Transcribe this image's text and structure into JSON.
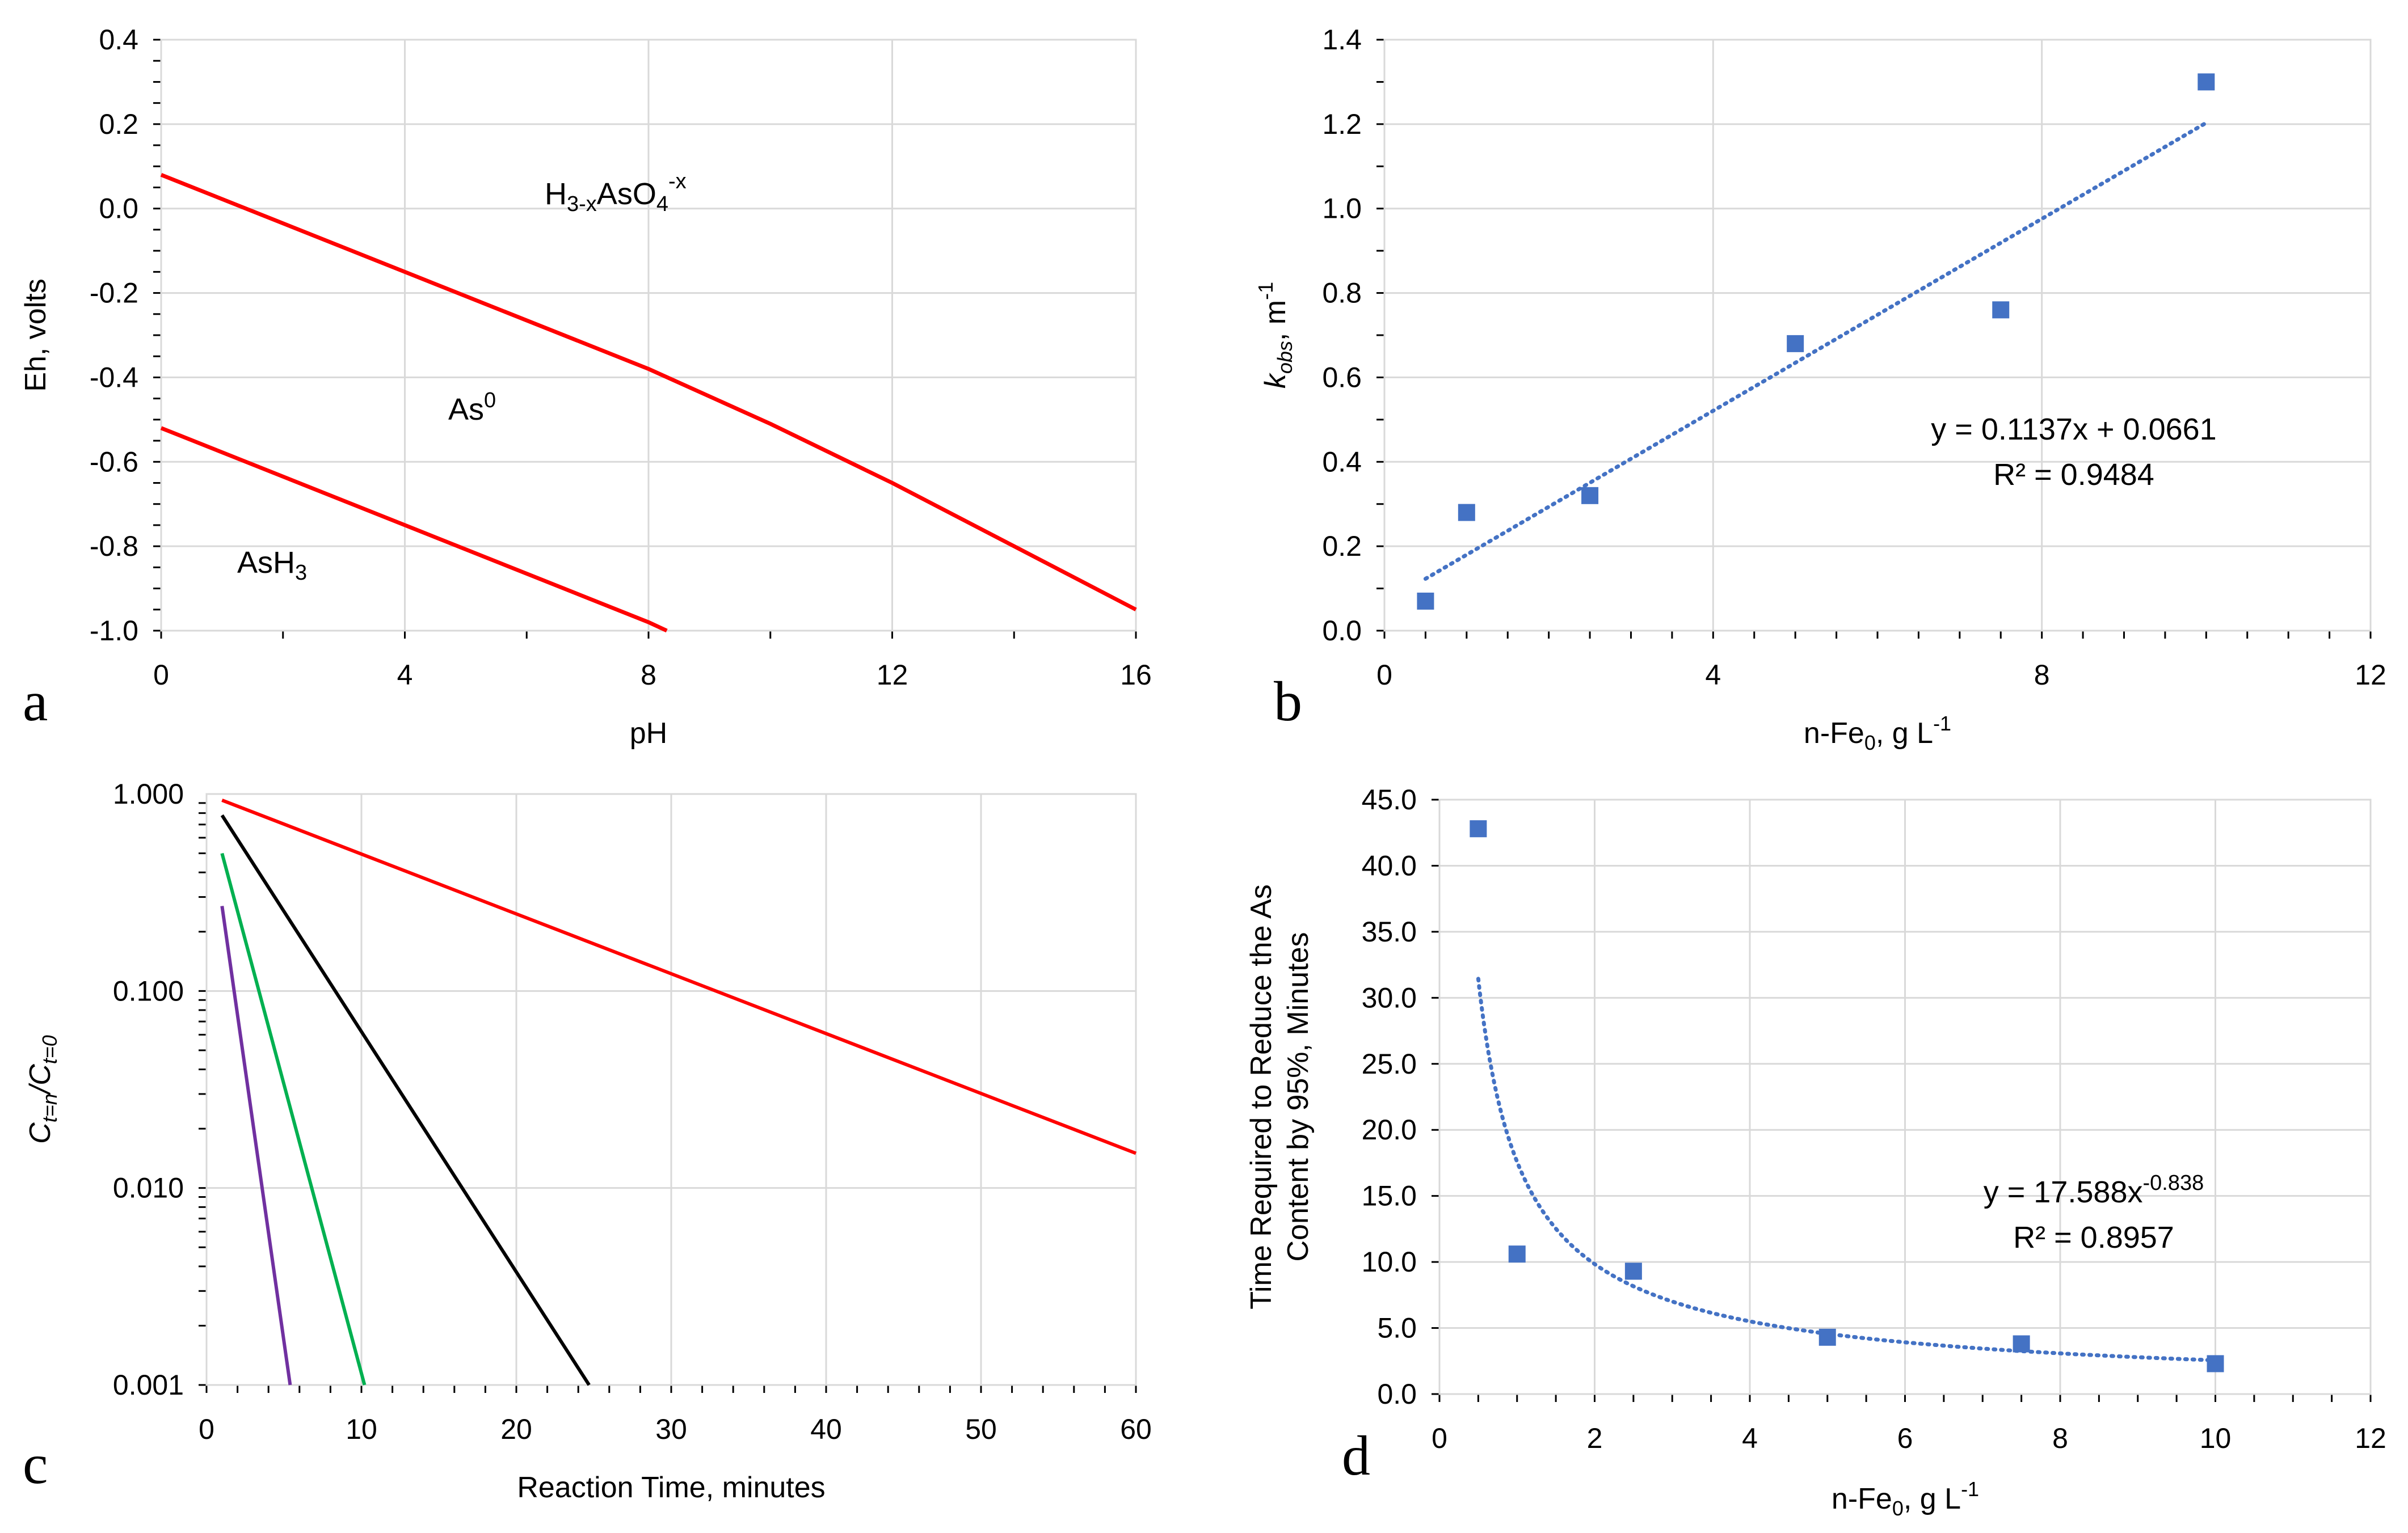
{
  "chart_data": [
    {
      "panel": "a",
      "type": "line",
      "title": "",
      "xlabel": "pH",
      "ylabel": "Eh, volts",
      "xlim": [
        0,
        16
      ],
      "ylim": [
        -1.0,
        0.4
      ],
      "xticks": [
        "0",
        "4",
        "8",
        "12",
        "16"
      ],
      "yticks": [
        "0.4",
        "0.2",
        "0.0",
        "-0.2",
        "-0.4",
        "-0.6",
        "-0.8",
        "-1.0"
      ],
      "series": [
        {
          "name": "upper boundary",
          "color": "#ff0000",
          "x": [
            0,
            4,
            8,
            10,
            12,
            14,
            16
          ],
          "y": [
            0.08,
            -0.15,
            -0.38,
            -0.51,
            -0.65,
            -0.8,
            -0.95
          ]
        },
        {
          "name": "lower boundary",
          "color": "#ff0000",
          "x": [
            0,
            4,
            8,
            8.3
          ],
          "y": [
            -0.52,
            -0.75,
            -0.98,
            -1.0
          ]
        }
      ],
      "regions": {
        "top": "H",
        "mid": "As",
        "low": "AsH"
      },
      "region_subs": {
        "top_sub": "3-x",
        "top_main": "AsO",
        "top_sub2": "4",
        "top_sup": "-x",
        "mid_sup": "0",
        "low_sub": "3"
      }
    },
    {
      "panel": "b",
      "type": "scatter",
      "title": "",
      "xlabel_main": "n-Fe",
      "xlabel_sub": "0",
      "xlabel_rest": ", g L",
      "xlabel_sup": "-1",
      "ylabel_k": "k",
      "ylabel_sub": "obs",
      "ylabel_rest": ", m",
      "ylabel_sup": "-1",
      "xlim": [
        0,
        12
      ],
      "ylim": [
        0,
        1.4
      ],
      "xticks": [
        "0",
        "4",
        "8",
        "12"
      ],
      "yticks": [
        "1.4",
        "1.2",
        "1.0",
        "0.8",
        "0.6",
        "0.4",
        "0.2",
        "0.0"
      ],
      "points": {
        "x": [
          0.5,
          1,
          2.5,
          5,
          7.5,
          10
        ],
        "y": [
          0.07,
          0.28,
          0.32,
          0.68,
          0.76,
          1.3
        ]
      },
      "trend": {
        "slope": 0.1137,
        "intercept": 0.0661,
        "x_range": [
          0.5,
          10
        ]
      },
      "equation": "y = 0.1137x + 0.0661",
      "r2": "R² = 0.9484",
      "color": "#4472c4"
    },
    {
      "panel": "c",
      "type": "line",
      "title": "",
      "xlabel": "Reaction Time, minutes",
      "ylabel_c1": "C",
      "ylabel_sub1": "t=n",
      "ylabel_slash": "/C",
      "ylabel_sub2": "t=0",
      "yscale": "log",
      "xlim": [
        0,
        60
      ],
      "ylim": [
        0.001,
        1.0
      ],
      "xticks": [
        "0",
        "10",
        "20",
        "30",
        "40",
        "50",
        "60"
      ],
      "yticks": [
        "1.000",
        "0.100",
        "0.010",
        "0.001"
      ],
      "series": [
        {
          "name": "red",
          "color": "#ff0000",
          "x": [
            1,
            60
          ],
          "y": [
            0.93,
            0.015
          ]
        },
        {
          "name": "black",
          "color": "#000000",
          "x": [
            1,
            24.7
          ],
          "y": [
            0.78,
            0.001
          ]
        },
        {
          "name": "green",
          "color": "#00b050",
          "x": [
            1,
            10.2
          ],
          "y": [
            0.5,
            0.001
          ]
        },
        {
          "name": "purple",
          "color": "#7030a0",
          "x": [
            1,
            5.4
          ],
          "y": [
            0.27,
            0.001
          ]
        }
      ]
    },
    {
      "panel": "d",
      "type": "scatter",
      "title": "",
      "xlabel_main": "n-Fe",
      "xlabel_sub": "0",
      "xlabel_rest": ", g L",
      "xlabel_sup": "-1",
      "ylabel_line1": "Time Required to Reduce the As",
      "ylabel_line2": "Content by 95%, Minutes",
      "xlim": [
        0,
        12
      ],
      "ylim": [
        0,
        45
      ],
      "xticks": [
        "0",
        "2",
        "4",
        "6",
        "8",
        "10",
        "12"
      ],
      "yticks": [
        "45.0",
        "40.0",
        "35.0",
        "30.0",
        "25.0",
        "20.0",
        "15.0",
        "10.0",
        "5.0",
        "0.0"
      ],
      "points": {
        "x": [
          0.5,
          1,
          2.5,
          5,
          7.5,
          10
        ],
        "y": [
          42.8,
          10.6,
          9.3,
          4.3,
          3.8,
          2.3
        ]
      },
      "trend": {
        "a": 17.588,
        "b": -0.838,
        "x_range": [
          0.5,
          10
        ]
      },
      "equation_main": "y = 17.588x",
      "equation_sup": "-0.838",
      "r2": "R² = 0.8957",
      "color": "#4472c4"
    }
  ]
}
